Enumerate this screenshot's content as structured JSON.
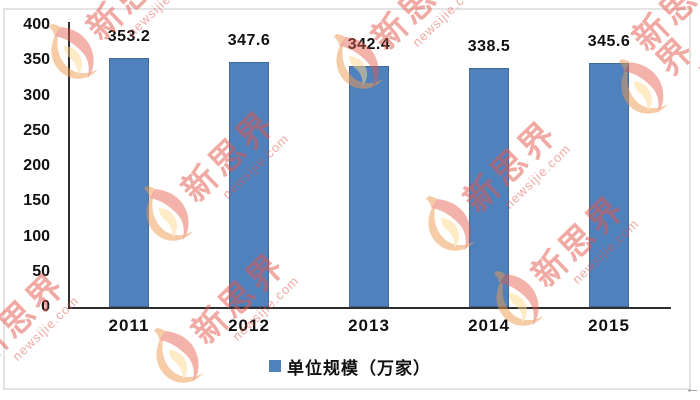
{
  "watermark": {
    "brand": "新思界",
    "domain": "newsijie.com"
  },
  "legend": {
    "label": "单位规模（万家）"
  },
  "misc": {
    "corner_arrow_icon": "←"
  },
  "chart_data": {
    "type": "bar",
    "title": "",
    "categories": [
      "2011",
      "2012",
      "2013",
      "2014",
      "2015"
    ],
    "series": [
      {
        "name": "单位规模（万家）",
        "values": [
          353.2,
          347.6,
          342.4,
          338.5,
          345.6
        ]
      }
    ],
    "value_labels": [
      "353.2",
      "347.6",
      "342.4",
      "338.5",
      "345.6"
    ],
    "xlabel": "",
    "ylabel": "",
    "ylim": [
      0,
      400
    ],
    "ytick_step": 50,
    "yticks": [
      400,
      350,
      300,
      250,
      200,
      150,
      100,
      50,
      0
    ],
    "grid": false,
    "legend_position": "bottom",
    "bar_color": "#4f81bd",
    "axis_color": "#2e2e2e",
    "label_color": "#111111",
    "watermark_color": "#e4564a"
  }
}
